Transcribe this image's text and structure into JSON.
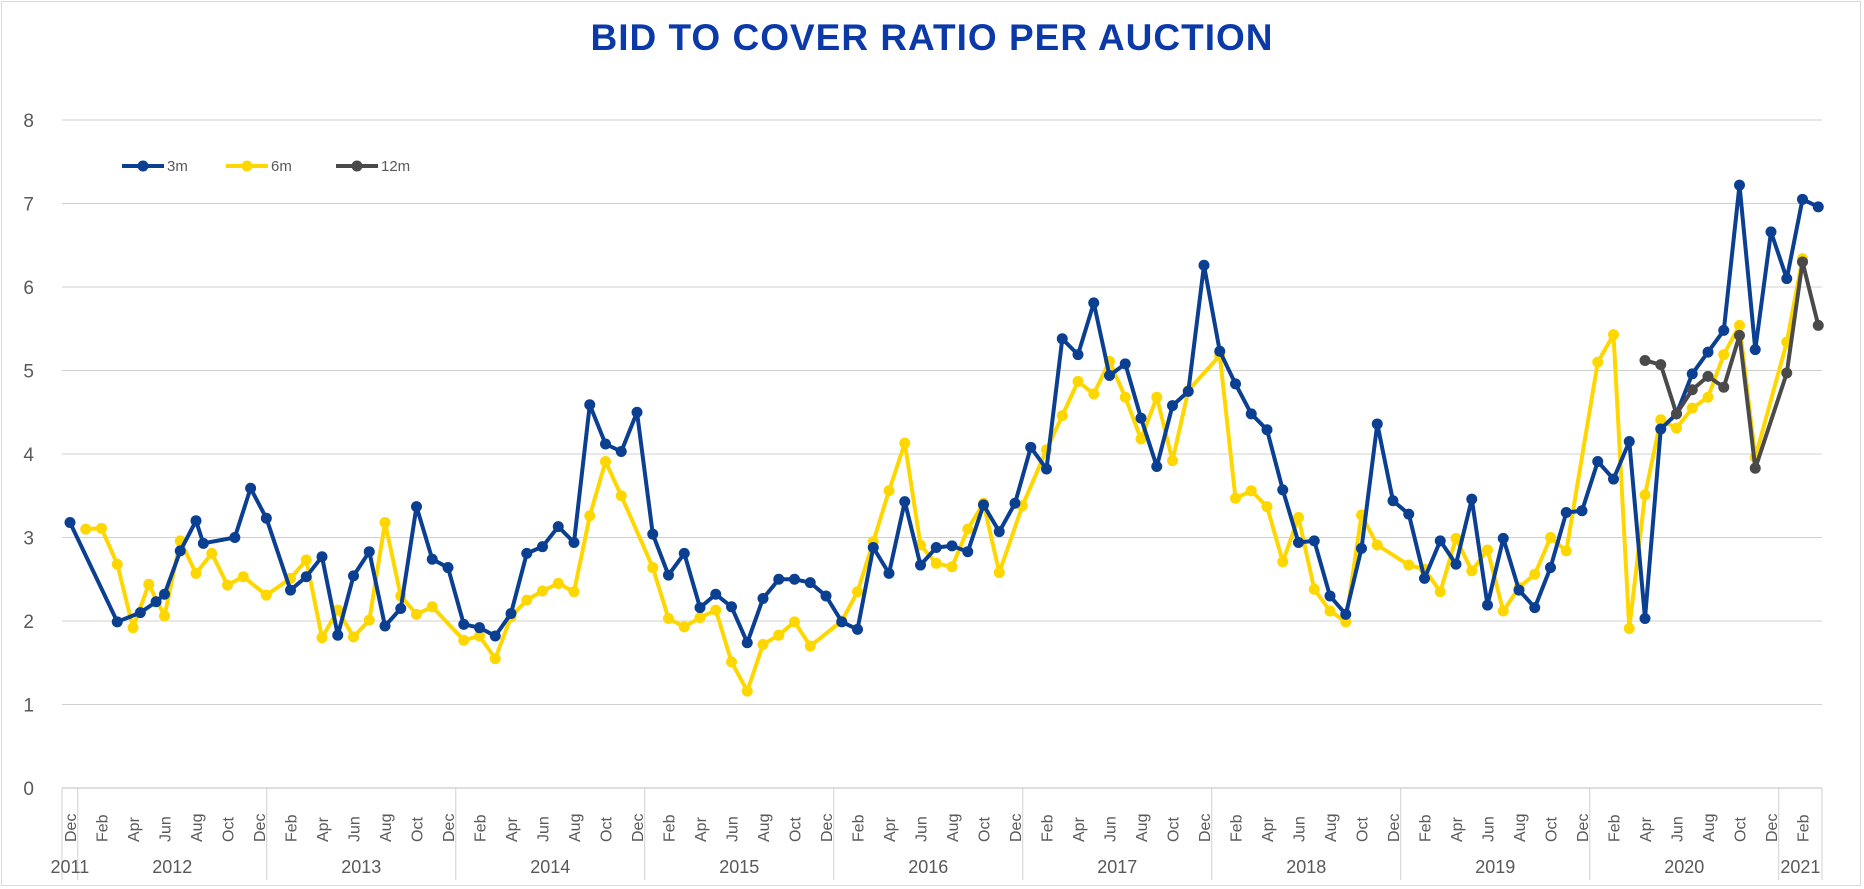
{
  "chart_data": {
    "type": "line",
    "title": "BID TO COVER RATIO PER AUCTION",
    "xlabel": "",
    "ylabel": "",
    "ylim": [
      0,
      8
    ],
    "yticks": [
      0,
      1,
      2,
      3,
      4,
      5,
      6,
      7,
      8
    ],
    "grid": true,
    "legend_position": "top-left",
    "x_range": [
      "2011-12",
      "2021-03"
    ],
    "x_tick_labels": [
      "Dec",
      "Feb",
      "Apr",
      "Jun",
      "Aug",
      "Oct",
      "Dec",
      "Feb",
      "Apr",
      "Jun",
      "Aug",
      "Oct",
      "Dec",
      "Feb",
      "Apr",
      "Jun",
      "Aug",
      "Oct",
      "Dec",
      "Feb",
      "Apr",
      "Jun",
      "Aug",
      "Oct",
      "Dec",
      "Feb",
      "Apr",
      "Jun",
      "Aug",
      "Oct",
      "Dec",
      "Feb",
      "Apr",
      "Jun",
      "Aug",
      "Oct",
      "Dec",
      "Feb",
      "Apr",
      "Jun",
      "Aug",
      "Oct",
      "Dec",
      "Feb",
      "Apr",
      "Jun",
      "Aug",
      "Oct",
      "Dec",
      "Feb",
      "Apr",
      "Jun",
      "Aug",
      "Oct",
      "Dec",
      "Feb"
    ],
    "year_labels": [
      "2011",
      "2012",
      "2013",
      "2014",
      "2015",
      "2016",
      "2017",
      "2018",
      "2019",
      "2020",
      "2021"
    ],
    "colors": {
      "3m": "#0b3f91",
      "6m": "#ffd700",
      "12m": "#4a4a4a",
      "title": "#0b3aa8",
      "grid": "#d0d0d0",
      "text": "#595959"
    },
    "series": [
      {
        "name": "3m",
        "points": [
          [
            "2011-12-01",
            3.18
          ],
          [
            "2012-03-01",
            1.99
          ],
          [
            "2012-04-15",
            2.1
          ],
          [
            "2012-05-15",
            2.23
          ],
          [
            "2012-06-01",
            2.32
          ],
          [
            "2012-07-01",
            2.84
          ],
          [
            "2012-08-01",
            3.2
          ],
          [
            "2012-08-15",
            2.93
          ],
          [
            "2012-10-15",
            3.0
          ],
          [
            "2012-11-15",
            3.59
          ],
          [
            "2012-12-15",
            3.23
          ],
          [
            "2013-02-01",
            2.37
          ],
          [
            "2013-03-01",
            2.53
          ],
          [
            "2013-04-01",
            2.77
          ],
          [
            "2013-05-01",
            1.83
          ],
          [
            "2013-06-01",
            2.54
          ],
          [
            "2013-07-01",
            2.83
          ],
          [
            "2013-08-01",
            1.94
          ],
          [
            "2013-09-01",
            2.15
          ],
          [
            "2013-10-01",
            3.37
          ],
          [
            "2013-11-01",
            2.74
          ],
          [
            "2013-12-01",
            2.64
          ],
          [
            "2014-01-01",
            1.96
          ],
          [
            "2014-02-01",
            1.92
          ],
          [
            "2014-03-01",
            1.82
          ],
          [
            "2014-04-01",
            2.09
          ],
          [
            "2014-05-01",
            2.81
          ],
          [
            "2014-06-01",
            2.89
          ],
          [
            "2014-07-01",
            3.13
          ],
          [
            "2014-08-01",
            2.94
          ],
          [
            "2014-09-01",
            4.59
          ],
          [
            "2014-10-01",
            4.12
          ],
          [
            "2014-11-01",
            4.03
          ],
          [
            "2014-12-01",
            4.5
          ],
          [
            "2015-01-01",
            3.04
          ],
          [
            "2015-02-01",
            2.55
          ],
          [
            "2015-03-01",
            2.81
          ],
          [
            "2015-04-01",
            2.16
          ],
          [
            "2015-05-01",
            2.32
          ],
          [
            "2015-06-01",
            2.17
          ],
          [
            "2015-07-01",
            1.74
          ],
          [
            "2015-08-01",
            2.27
          ],
          [
            "2015-09-01",
            2.5
          ],
          [
            "2015-10-01",
            2.5
          ],
          [
            "2015-11-01",
            2.46
          ],
          [
            "2015-12-01",
            2.3
          ],
          [
            "2016-01-01",
            1.99
          ],
          [
            "2016-02-01",
            1.9
          ],
          [
            "2016-03-01",
            2.88
          ],
          [
            "2016-04-01",
            2.57
          ],
          [
            "2016-05-01",
            3.43
          ],
          [
            "2016-06-01",
            2.67
          ],
          [
            "2016-07-01",
            2.88
          ],
          [
            "2016-08-01",
            2.9
          ],
          [
            "2016-09-01",
            2.83
          ],
          [
            "2016-10-01",
            3.39
          ],
          [
            "2016-11-01",
            3.07
          ],
          [
            "2016-12-01",
            3.41
          ],
          [
            "2017-01-01",
            4.08
          ],
          [
            "2017-02-01",
            3.82
          ],
          [
            "2017-03-01",
            5.38
          ],
          [
            "2017-04-01",
            5.19
          ],
          [
            "2017-05-01",
            5.81
          ],
          [
            "2017-06-01",
            4.94
          ],
          [
            "2017-07-01",
            5.08
          ],
          [
            "2017-08-01",
            4.43
          ],
          [
            "2017-09-01",
            3.85
          ],
          [
            "2017-10-01",
            4.58
          ],
          [
            "2017-11-01",
            4.75
          ],
          [
            "2017-12-01",
            6.26
          ],
          [
            "2018-01-01",
            5.23
          ],
          [
            "2018-02-01",
            4.84
          ],
          [
            "2018-03-01",
            4.48
          ],
          [
            "2018-04-01",
            4.29
          ],
          [
            "2018-05-01",
            3.57
          ],
          [
            "2018-06-01",
            2.94
          ],
          [
            "2018-07-01",
            2.96
          ],
          [
            "2018-08-01",
            2.3
          ],
          [
            "2018-09-01",
            2.08
          ],
          [
            "2018-10-01",
            2.87
          ],
          [
            "2018-11-01",
            4.36
          ],
          [
            "2018-12-01",
            3.44
          ],
          [
            "2019-01-01",
            3.28
          ],
          [
            "2019-02-01",
            2.51
          ],
          [
            "2019-03-01",
            2.96
          ],
          [
            "2019-04-01",
            2.68
          ],
          [
            "2019-05-01",
            3.46
          ],
          [
            "2019-06-01",
            2.19
          ],
          [
            "2019-07-01",
            2.99
          ],
          [
            "2019-08-01",
            2.37
          ],
          [
            "2019-09-01",
            2.16
          ],
          [
            "2019-10-01",
            2.64
          ],
          [
            "2019-11-01",
            3.3
          ],
          [
            "2019-12-01",
            3.32
          ],
          [
            "2020-01-01",
            3.91
          ],
          [
            "2020-02-01",
            3.7
          ],
          [
            "2020-03-01",
            4.15
          ],
          [
            "2020-04-01",
            2.03
          ],
          [
            "2020-05-01",
            4.3
          ],
          [
            "2020-06-01",
            4.48
          ],
          [
            "2020-07-01",
            4.96
          ],
          [
            "2020-08-01",
            5.22
          ],
          [
            "2020-09-01",
            5.48
          ],
          [
            "2020-10-01",
            7.22
          ],
          [
            "2020-11-01",
            5.25
          ],
          [
            "2020-12-01",
            6.66
          ],
          [
            "2021-01-01",
            6.1
          ],
          [
            "2021-02-01",
            7.05
          ],
          [
            "2021-03-01",
            6.96
          ]
        ]
      },
      {
        "name": "6m",
        "points": [
          [
            "2012-01-01",
            3.1
          ],
          [
            "2012-02-01",
            3.11
          ],
          [
            "2012-03-01",
            2.68
          ],
          [
            "2012-04-01",
            1.92
          ],
          [
            "2012-05-01",
            2.44
          ],
          [
            "2012-06-01",
            2.06
          ],
          [
            "2012-07-01",
            2.96
          ],
          [
            "2012-08-01",
            2.57
          ],
          [
            "2012-09-01",
            2.81
          ],
          [
            "2012-10-01",
            2.43
          ],
          [
            "2012-11-01",
            2.53
          ],
          [
            "2012-12-15",
            2.31
          ],
          [
            "2013-02-01",
            2.51
          ],
          [
            "2013-03-01",
            2.73
          ],
          [
            "2013-04-01",
            1.8
          ],
          [
            "2013-05-01",
            2.13
          ],
          [
            "2013-06-01",
            1.81
          ],
          [
            "2013-07-01",
            2.01
          ],
          [
            "2013-08-01",
            3.18
          ],
          [
            "2013-09-01",
            2.3
          ],
          [
            "2013-10-01",
            2.08
          ],
          [
            "2013-11-01",
            2.17
          ],
          [
            "2014-01-01",
            1.77
          ],
          [
            "2014-02-01",
            1.82
          ],
          [
            "2014-03-01",
            1.55
          ],
          [
            "2014-04-01",
            2.05
          ],
          [
            "2014-05-01",
            2.25
          ],
          [
            "2014-06-01",
            2.36
          ],
          [
            "2014-07-01",
            2.45
          ],
          [
            "2014-08-01",
            2.35
          ],
          [
            "2014-09-01",
            3.26
          ],
          [
            "2014-10-01",
            3.91
          ],
          [
            "2014-11-01",
            3.5
          ],
          [
            "2015-01-01",
            2.64
          ],
          [
            "2015-02-01",
            2.03
          ],
          [
            "2015-03-01",
            1.93
          ],
          [
            "2015-04-01",
            2.04
          ],
          [
            "2015-05-01",
            2.13
          ],
          [
            "2015-06-01",
            1.51
          ],
          [
            "2015-07-01",
            1.16
          ],
          [
            "2015-08-01",
            1.72
          ],
          [
            "2015-09-01",
            1.83
          ],
          [
            "2015-10-01",
            1.99
          ],
          [
            "2015-11-01",
            1.7
          ],
          [
            "2016-01-01",
            2.0
          ],
          [
            "2016-02-01",
            2.35
          ],
          [
            "2016-03-01",
            2.95
          ],
          [
            "2016-04-01",
            3.56
          ],
          [
            "2016-05-01",
            4.13
          ],
          [
            "2016-06-01",
            2.91
          ],
          [
            "2016-07-01",
            2.69
          ],
          [
            "2016-08-01",
            2.65
          ],
          [
            "2016-09-01",
            3.1
          ],
          [
            "2016-10-01",
            3.41
          ],
          [
            "2016-11-01",
            2.58
          ],
          [
            "2016-12-15",
            3.38
          ],
          [
            "2017-02-01",
            4.05
          ],
          [
            "2017-03-01",
            4.46
          ],
          [
            "2017-04-01",
            4.87
          ],
          [
            "2017-05-01",
            4.72
          ],
          [
            "2017-06-01",
            5.11
          ],
          [
            "2017-07-01",
            4.68
          ],
          [
            "2017-08-01",
            4.18
          ],
          [
            "2017-09-01",
            4.68
          ],
          [
            "2017-10-01",
            3.92
          ],
          [
            "2017-11-01",
            4.76
          ],
          [
            "2018-01-01",
            5.18
          ],
          [
            "2018-02-01",
            3.47
          ],
          [
            "2018-03-01",
            3.56
          ],
          [
            "2018-04-01",
            3.37
          ],
          [
            "2018-05-01",
            2.71
          ],
          [
            "2018-06-01",
            3.24
          ],
          [
            "2018-07-01",
            2.38
          ],
          [
            "2018-08-01",
            2.12
          ],
          [
            "2018-09-01",
            1.99
          ],
          [
            "2018-10-01",
            3.27
          ],
          [
            "2018-11-01",
            2.91
          ],
          [
            "2019-01-01",
            2.67
          ],
          [
            "2019-02-01",
            2.62
          ],
          [
            "2019-03-01",
            2.35
          ],
          [
            "2019-04-01",
            2.99
          ],
          [
            "2019-05-01",
            2.6
          ],
          [
            "2019-06-01",
            2.85
          ],
          [
            "2019-07-01",
            2.12
          ],
          [
            "2019-08-01",
            2.4
          ],
          [
            "2019-09-01",
            2.56
          ],
          [
            "2019-10-01",
            3.0
          ],
          [
            "2019-11-01",
            2.84
          ],
          [
            "2020-01-01",
            5.1
          ],
          [
            "2020-02-01",
            5.43
          ],
          [
            "2020-03-01",
            1.91
          ],
          [
            "2020-04-01",
            3.51
          ],
          [
            "2020-05-01",
            4.41
          ],
          [
            "2020-06-01",
            4.31
          ],
          [
            "2020-07-01",
            4.55
          ],
          [
            "2020-08-01",
            4.68
          ],
          [
            "2020-09-01",
            5.19
          ],
          [
            "2020-10-01",
            5.54
          ],
          [
            "2020-11-01",
            3.96
          ],
          [
            "2021-01-01",
            5.34
          ],
          [
            "2021-02-01",
            6.34
          ]
        ]
      },
      {
        "name": "12m",
        "points": [
          [
            "2020-04-01",
            5.12
          ],
          [
            "2020-05-01",
            5.07
          ],
          [
            "2020-06-01",
            4.48
          ],
          [
            "2020-07-01",
            4.77
          ],
          [
            "2020-08-01",
            4.93
          ],
          [
            "2020-09-01",
            4.8
          ],
          [
            "2020-10-01",
            5.42
          ],
          [
            "2020-11-01",
            3.83
          ],
          [
            "2021-01-01",
            4.97
          ],
          [
            "2021-02-01",
            6.3
          ],
          [
            "2021-03-01",
            5.54
          ]
        ]
      }
    ]
  }
}
